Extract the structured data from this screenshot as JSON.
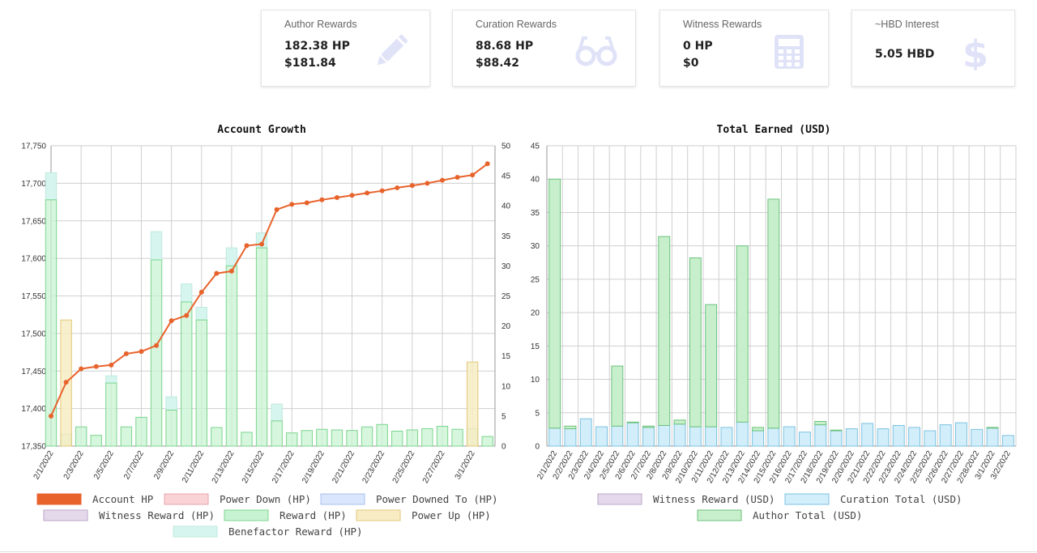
{
  "cards": [
    {
      "label": "Author Rewards",
      "value1": "182.38 HP",
      "value2": "$181.84",
      "icon": "pencil-icon"
    },
    {
      "label": "Curation Rewards",
      "value1": "88.68 HP",
      "value2": "$88.42",
      "icon": "glasses-icon"
    },
    {
      "label": "Witness Rewards",
      "value1": "0 HP",
      "value2": "$0",
      "icon": "calculator-icon"
    },
    {
      "label": "~HBD Interest",
      "value1": "5.05 HBD",
      "value2": "",
      "icon": "dollar-icon"
    }
  ],
  "colors": {
    "icon": "#e0e3f8",
    "account_hp": "#e8632c",
    "reward": "#c8f3d2",
    "reward_border": "#7cd58f",
    "benefactor": "#d6f5ef",
    "power_up": "#f7ecc4",
    "power_down": "#f9d3d6",
    "power_downed_to": "#d9e6fb",
    "witness": "#e4d9ea",
    "curation": "#d3eefb",
    "curation_border": "#7cc3e0",
    "author": "#c7efcb",
    "author_border": "#6cc27c"
  },
  "chart_data": [
    {
      "type": "bar",
      "title": "Account Growth",
      "x": [
        "2/1/2022",
        "2/2/2022",
        "2/3/2022",
        "2/4/2022",
        "2/5/2022",
        "2/6/2022",
        "2/7/2022",
        "2/8/2022",
        "2/9/2022",
        "2/10/2022",
        "2/11/2022",
        "2/12/2022",
        "2/13/2022",
        "2/14/2022",
        "2/15/2022",
        "2/16/2022",
        "2/17/2022",
        "2/18/2022",
        "2/19/2022",
        "2/20/2022",
        "2/21/2022",
        "2/22/2022",
        "2/23/2022",
        "2/24/2022",
        "2/25/2022",
        "2/26/2022",
        "2/27/2022",
        "2/28/2022",
        "3/1/2022",
        "3/2/2022"
      ],
      "x_tick_labels": [
        "2/1/2022",
        "2/3/2022",
        "2/5/2022",
        "2/7/2022",
        "2/9/2022",
        "2/11/2022",
        "2/13/2022",
        "2/15/2022",
        "2/17/2022",
        "2/19/2022",
        "2/21/2022",
        "2/23/2022",
        "2/25/2022",
        "2/27/2022",
        "3/1/2022"
      ],
      "y_left": {
        "ticks": [
          "17,350",
          "17,400",
          "17,450",
          "17,500",
          "17,550",
          "17,600",
          "17,650",
          "17,700",
          "17,750"
        ],
        "range": [
          17350,
          17750
        ]
      },
      "y_right": {
        "ticks": [
          "0",
          "5",
          "10",
          "15",
          "20",
          "25",
          "30",
          "35",
          "40",
          "45",
          "50"
        ],
        "range": [
          0,
          50
        ]
      },
      "series": [
        {
          "name": "Account HP",
          "type": "line",
          "axis": "left",
          "values": [
            17390,
            17435,
            17453,
            17456,
            17458,
            17473,
            17476,
            17484,
            17517,
            17524,
            17555,
            17580,
            17583,
            17617,
            17619,
            17665,
            17672,
            17674,
            17678,
            17681,
            17684,
            17687,
            17690,
            17694,
            17697,
            17700,
            17704,
            17708,
            17711,
            17726
          ]
        },
        {
          "name": "Power Down (HP)",
          "type": "bar",
          "axis": "right",
          "values": [
            0,
            0,
            0,
            0,
            0,
            0,
            0,
            0,
            0,
            0,
            0,
            0,
            0,
            0,
            0,
            0,
            0,
            0,
            0,
            0,
            0,
            0,
            0,
            0,
            0,
            0,
            0,
            0,
            0,
            0
          ]
        },
        {
          "name": "Power Downed To (HP)",
          "type": "bar",
          "axis": "right",
          "values": [
            0,
            0,
            0,
            0,
            0,
            0,
            0,
            0,
            0,
            0,
            0,
            0,
            0,
            0,
            0,
            0,
            0,
            0,
            0,
            0,
            0,
            0,
            0,
            0,
            0,
            0,
            0,
            0,
            0,
            0
          ]
        },
        {
          "name": "Witness Reward (HP)",
          "type": "bar",
          "axis": "right",
          "values": [
            0,
            0,
            0,
            0,
            0,
            0,
            0,
            0,
            0,
            0,
            0,
            0,
            0,
            0,
            0,
            0,
            0,
            0,
            0,
            0,
            0,
            0,
            0,
            0,
            0,
            0,
            0,
            0,
            0,
            0
          ]
        },
        {
          "name": "Reward (HP)",
          "type": "bar",
          "axis": "right",
          "values": [
            41,
            2,
            3.2,
            1.8,
            10.5,
            3.2,
            4.8,
            31,
            6,
            24,
            21,
            3.1,
            30,
            2.3,
            33,
            4.2,
            2.2,
            2.6,
            2.8,
            2.7,
            2.6,
            3.2,
            3.6,
            2.5,
            2.7,
            2.9,
            3.3,
            2.8,
            2.9,
            1.6
          ]
        },
        {
          "name": "Power Up (HP)",
          "type": "bar",
          "axis": "right",
          "values": [
            0,
            21,
            0,
            0,
            0,
            0,
            0,
            0,
            0,
            0,
            0,
            0,
            0,
            0,
            0,
            0,
            0,
            0,
            0,
            0,
            0,
            0,
            0,
            0,
            0,
            0,
            0,
            0,
            14,
            0
          ]
        },
        {
          "name": "Benefactor Reward (HP)",
          "type": "bar",
          "axis": "right",
          "values": [
            4.5,
            0,
            0,
            0,
            1.2,
            0,
            0,
            4.7,
            2.2,
            3,
            2.1,
            0,
            3,
            0,
            2.5,
            2.8,
            0,
            0,
            0,
            0,
            0,
            0,
            0,
            0,
            0,
            0,
            0,
            0,
            0,
            0
          ]
        }
      ],
      "legend": [
        "Account HP",
        "Power Down (HP)",
        "Power Downed To (HP)",
        "Witness Reward (HP)",
        "Reward (HP)",
        "Power Up (HP)",
        "Benefactor Reward (HP)"
      ],
      "legend_position": "bottom",
      "grid": true
    },
    {
      "type": "bar",
      "title": "Total Earned (USD)",
      "x": [
        "2/1/2022",
        "2/2/2022",
        "2/3/2022",
        "2/4/2022",
        "2/5/2022",
        "2/6/2022",
        "2/7/2022",
        "2/8/2022",
        "2/9/2022",
        "2/10/2022",
        "2/11/2022",
        "2/12/2022",
        "2/13/2022",
        "2/14/2022",
        "2/15/2022",
        "2/16/2022",
        "2/17/2022",
        "2/18/2022",
        "2/19/2022",
        "2/20/2022",
        "2/21/2022",
        "2/22/2022",
        "2/23/2022",
        "2/24/2022",
        "2/25/2022",
        "2/26/2022",
        "2/27/2022",
        "2/28/2022",
        "3/1/2022",
        "3/2/2022"
      ],
      "y": {
        "ticks": [
          "0",
          "5",
          "10",
          "15",
          "20",
          "25",
          "30",
          "35",
          "40",
          "45"
        ],
        "range": [
          0,
          45
        ]
      },
      "stacked": true,
      "series": [
        {
          "name": "Witness Reward (USD)",
          "values": [
            0,
            0,
            0,
            0,
            0,
            0,
            0,
            0,
            0,
            0,
            0,
            0,
            0,
            0,
            0,
            0,
            0,
            0,
            0,
            0,
            0,
            0,
            0,
            0,
            0,
            0,
            0,
            0,
            0,
            0
          ]
        },
        {
          "name": "Curation Total (USD)",
          "values": [
            2.7,
            2.6,
            4.1,
            2.9,
            3.0,
            3.5,
            2.8,
            3.1,
            3.3,
            2.9,
            2.9,
            2.8,
            3.6,
            2.3,
            2.7,
            2.9,
            2.1,
            3.2,
            2.3,
            2.6,
            3.4,
            2.6,
            3.1,
            2.8,
            2.3,
            3.2,
            3.5,
            2.5,
            2.7,
            1.6
          ]
        },
        {
          "name": "Author Total (USD)",
          "values": [
            37.3,
            0.4,
            0,
            0,
            9.0,
            0.1,
            0.2,
            28.3,
            0.6,
            25.3,
            18.3,
            0,
            26.4,
            0.5,
            34.3,
            0,
            0,
            0.5,
            0.1,
            0,
            0,
            0,
            0,
            0,
            0,
            0,
            0,
            0,
            0.1,
            0
          ]
        }
      ],
      "legend": [
        "Witness Reward (USD)",
        "Curation Total (USD)",
        "Author Total (USD)"
      ],
      "legend_position": "bottom",
      "grid": true
    }
  ]
}
